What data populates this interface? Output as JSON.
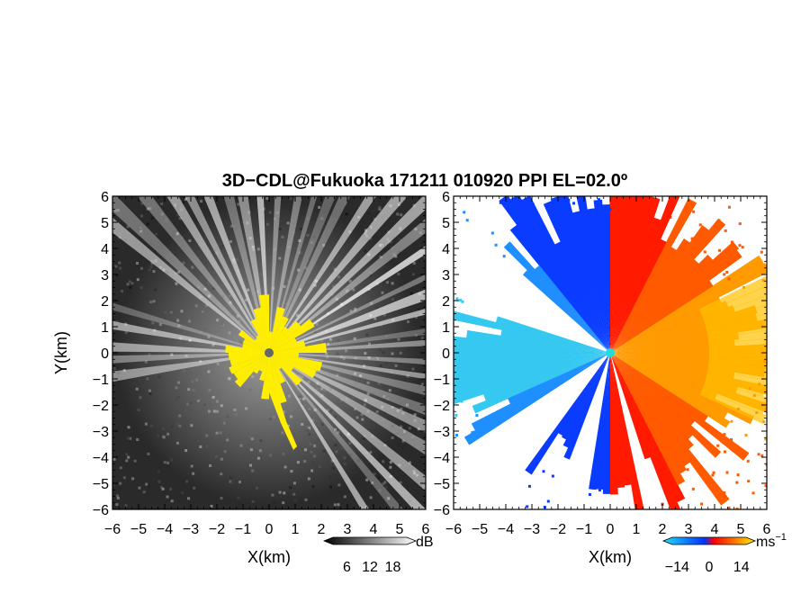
{
  "title": "3D−CDL@Fukuoka 171211 010920 PPI EL=02.0º",
  "chart_data": [
    {
      "type": "heatmap",
      "panel": "left",
      "quantity_unit": "dB",
      "xlabel": "X(km)",
      "ylabel": "Y(km)",
      "xlim": [
        -6,
        6
      ],
      "ylim": [
        -6,
        6
      ],
      "x_ticks": [
        "−6",
        "−5",
        "−4",
        "−3",
        "−2",
        "−1",
        "0",
        "1",
        "2",
        "3",
        "4",
        "5",
        "6"
      ],
      "y_ticks": [
        "6",
        "5",
        "4",
        "3",
        "2",
        "1",
        "0",
        "−1",
        "−2",
        "−3",
        "−4",
        "−5",
        "−6"
      ],
      "colorbar": {
        "labels": [
          "6",
          "12",
          "18"
        ],
        "unit": "dB",
        "range": [
          0,
          24
        ],
        "colors": [
          "#000000",
          "#ffffff"
        ]
      },
      "radar_marker_color": "#666666",
      "highlight_color": "#ffee00",
      "radar_site": [
        0,
        0
      ]
    },
    {
      "type": "heatmap",
      "panel": "right",
      "quantity_unit": "ms⁻¹",
      "xlabel": "X(km)",
      "xlim": [
        -6,
        6
      ],
      "ylim": [
        -6,
        6
      ],
      "x_ticks": [
        "−6",
        "−5",
        "−4",
        "−3",
        "−2",
        "−1",
        "0",
        "1",
        "2",
        "3",
        "4",
        "5",
        "6"
      ],
      "y_ticks": [
        "6",
        "5",
        "4",
        "3",
        "2",
        "1",
        "0",
        "−1",
        "−2",
        "−3",
        "−4",
        "−5",
        "−6"
      ],
      "colorbar": {
        "labels": [
          "−14",
          "0",
          "14"
        ],
        "unit": "ms",
        "unit_sup": "−1",
        "range": [
          -20,
          20
        ],
        "colors": [
          "#22ddff",
          "#0033ff",
          "#ff0000",
          "#ffee00"
        ]
      },
      "radar_marker_color": "#22dddd",
      "radar_site": [
        0,
        0
      ]
    }
  ]
}
